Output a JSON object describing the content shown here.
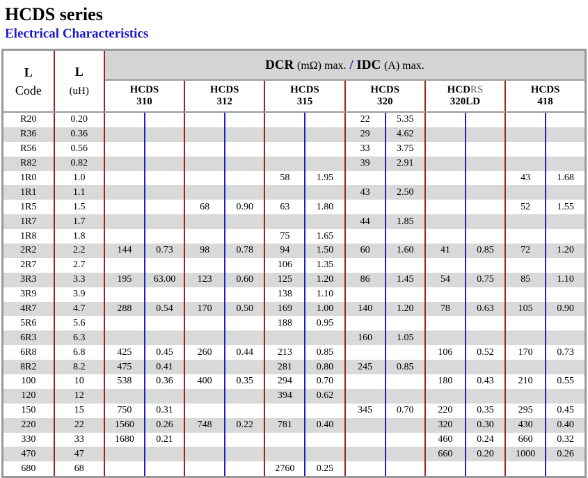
{
  "header": {
    "title": "HCDS series",
    "subtitle": "Electrical Characteristics"
  },
  "table": {
    "col_code": [
      "L",
      "Code"
    ],
    "col_l": [
      "L",
      "(uH)"
    ],
    "group_header": {
      "dcr": "DCR",
      "dcr_unit": "(mΩ) max.",
      "sep": "/",
      "idc": "IDC",
      "idc_unit": "(A) max."
    },
    "series": [
      {
        "name": [
          "HCDS"
        ],
        "model": "310"
      },
      {
        "name": [
          "HCDS"
        ],
        "model": "312"
      },
      {
        "name": [
          "HCDS"
        ],
        "model": "315"
      },
      {
        "name": [
          "HCDS"
        ],
        "model": "320"
      },
      {
        "name": [
          "HCD",
          "RS"
        ],
        "model": "320LD"
      },
      {
        "name": [
          "HCDS"
        ],
        "model": "418"
      }
    ],
    "rows": [
      [
        "R20",
        "0.20",
        null,
        null,
        null,
        null,
        null,
        null,
        "22",
        "5.35",
        null,
        null,
        null,
        null
      ],
      [
        "R36",
        "0.36",
        null,
        null,
        null,
        null,
        null,
        null,
        "29",
        "4.62",
        null,
        null,
        null,
        null
      ],
      [
        "R56",
        "0.56",
        null,
        null,
        null,
        null,
        null,
        null,
        "33",
        "3.75",
        null,
        null,
        null,
        null
      ],
      [
        "R82",
        "0.82",
        null,
        null,
        null,
        null,
        null,
        null,
        "39",
        "2.91",
        null,
        null,
        null,
        null
      ],
      [
        "1R0",
        "1.0",
        null,
        null,
        null,
        null,
        "58",
        "1.95",
        null,
        null,
        null,
        null,
        "43",
        "1.68"
      ],
      [
        "1R1",
        "1.1",
        null,
        null,
        null,
        null,
        null,
        null,
        "43",
        "2.50",
        null,
        null,
        null,
        null
      ],
      [
        "1R5",
        "1.5",
        null,
        null,
        "68",
        "0.90",
        "63",
        "1.80",
        null,
        null,
        null,
        null,
        "52",
        "1.55"
      ],
      [
        "1R7",
        "1.7",
        null,
        null,
        null,
        null,
        null,
        null,
        "44",
        "1.85",
        null,
        null,
        null,
        null
      ],
      [
        "1R8",
        "1.8",
        null,
        null,
        null,
        null,
        "75",
        "1.65",
        null,
        null,
        null,
        null,
        null,
        null
      ],
      [
        "2R2",
        "2.2",
        "144",
        "0.73",
        "98",
        "0.78",
        "94",
        "1.50",
        "60",
        "1.60",
        "41",
        "0.85",
        "72",
        "1.20"
      ],
      [
        "2R7",
        "2.7",
        null,
        null,
        null,
        null,
        "106",
        "1.35",
        null,
        null,
        null,
        null,
        null,
        null
      ],
      [
        "3R3",
        "3.3",
        "195",
        "63.00",
        "123",
        "0.60",
        "125",
        "1.20",
        "86",
        "1.45",
        "54",
        "0.75",
        "85",
        "1.10"
      ],
      [
        "3R9",
        "3.9",
        null,
        null,
        null,
        null,
        "138",
        "1.10",
        null,
        null,
        null,
        null,
        null,
        null
      ],
      [
        "4R7",
        "4.7",
        "288",
        "0.54",
        "170",
        "0.50",
        "169",
        "1.00",
        "140",
        "1.20",
        "78",
        "0.63",
        "105",
        "0.90"
      ],
      [
        "5R6",
        "5.6",
        null,
        null,
        null,
        null,
        "188",
        "0.95",
        null,
        null,
        null,
        null,
        null,
        null
      ],
      [
        "6R3",
        "6.3",
        null,
        null,
        null,
        null,
        null,
        null,
        "160",
        "1.05",
        null,
        null,
        null,
        null
      ],
      [
        "6R8",
        "6.8",
        "425",
        "0.45",
        "260",
        "0.44",
        "213",
        "0.85",
        null,
        null,
        "106",
        "0.52",
        "170",
        "0.73"
      ],
      [
        "8R2",
        "8.2",
        "475",
        "0.41",
        null,
        null,
        "281",
        "0.80",
        "245",
        "0.85",
        null,
        null,
        null,
        null
      ],
      [
        "100",
        "10",
        "538",
        "0.36",
        "400",
        "0.35",
        "294",
        "0.70",
        null,
        null,
        "180",
        "0.43",
        "210",
        "0.55"
      ],
      [
        "120",
        "12",
        null,
        null,
        null,
        null,
        "394",
        "0.62",
        null,
        null,
        null,
        null,
        null,
        null
      ],
      [
        "150",
        "15",
        "750",
        "0.31",
        null,
        null,
        null,
        null,
        "345",
        "0.70",
        "220",
        "0.35",
        "295",
        "0.45"
      ],
      [
        "220",
        "22",
        "1560",
        "0.26",
        "748",
        "0.22",
        "781",
        "0.40",
        null,
        null,
        "320",
        "0.30",
        "430",
        "0.40"
      ],
      [
        "330",
        "33",
        "1680",
        "0.21",
        null,
        null,
        null,
        null,
        null,
        null,
        "460",
        "0.24",
        "660",
        "0.32"
      ],
      [
        "470",
        "47",
        null,
        null,
        null,
        null,
        null,
        null,
        null,
        null,
        "660",
        "0.20",
        "1000",
        "0.26"
      ],
      [
        "680",
        "68",
        null,
        null,
        null,
        null,
        "2760",
        "0.25",
        null,
        null,
        null,
        null,
        null,
        null
      ]
    ]
  }
}
